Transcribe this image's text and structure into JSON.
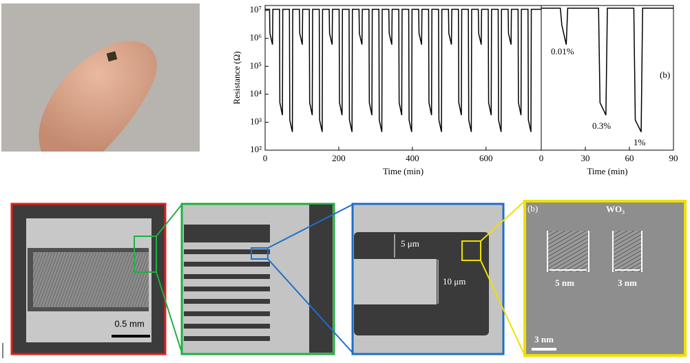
{
  "chart_data": [
    {
      "type": "line",
      "xlabel": "Time (min)",
      "ylabel": "Resistance (Ω)",
      "log_y": true,
      "xlim": [
        0,
        750
      ],
      "xticks": [
        0,
        200,
        400,
        600
      ],
      "ylim": [
        100,
        15000000
      ],
      "yticks": [
        {
          "value": 100,
          "label": "10²"
        },
        {
          "value": 1000,
          "label": "10³"
        },
        {
          "value": 10000,
          "label": "10⁴"
        },
        {
          "value": 100000,
          "label": "10⁵"
        },
        {
          "value": 1000000,
          "label": "10⁶"
        },
        {
          "value": 10000000,
          "label": "10⁷"
        }
      ],
      "series": [
        {
          "color": "#000000",
          "x": [
            0,
            12,
            13,
            20,
            21,
            39,
            40,
            47,
            48,
            66,
            67,
            74,
            75,
            93,
            94,
            101,
            102,
            120,
            121,
            128,
            129,
            147,
            148,
            155,
            156,
            174,
            175,
            182,
            183,
            201,
            202,
            209,
            210,
            228,
            229,
            236,
            237,
            255,
            256,
            263,
            264,
            282,
            283,
            290,
            291,
            309,
            310,
            317,
            318,
            336,
            337,
            344,
            345,
            363,
            364,
            371,
            372,
            390,
            391,
            398,
            399,
            417,
            418,
            425,
            426,
            444,
            445,
            452,
            453,
            471,
            472,
            479,
            480,
            498,
            499,
            506,
            507,
            525,
            526,
            533,
            534,
            552,
            553,
            560,
            561,
            579,
            580,
            587,
            588,
            606,
            607,
            614,
            615,
            633,
            634,
            641,
            642,
            660,
            661,
            668,
            669,
            687,
            688,
            695,
            696,
            714,
            715,
            722,
            723,
            750
          ],
          "y": [
            11000000,
            11000000,
            1500000,
            600000,
            11000000,
            11000000,
            5000,
            1800,
            11000000,
            11000000,
            1200,
            450,
            11000000,
            11000000,
            1500000,
            600000,
            11000000,
            11000000,
            5000,
            1800,
            11000000,
            11000000,
            1200,
            450,
            11000000,
            11000000,
            1500000,
            600000,
            11000000,
            11000000,
            5000,
            1800,
            11000000,
            11000000,
            1200,
            450,
            11000000,
            11000000,
            1500000,
            600000,
            11000000,
            11000000,
            5000,
            1800,
            11000000,
            11000000,
            1200,
            450,
            11000000,
            11000000,
            1500000,
            600000,
            11000000,
            11000000,
            5000,
            1800,
            11000000,
            11000000,
            1200,
            450,
            11000000,
            11000000,
            1500000,
            600000,
            11000000,
            11000000,
            5000,
            1800,
            11000000,
            11000000,
            1200,
            450,
            11000000,
            11000000,
            1500000,
            600000,
            11000000,
            11000000,
            5000,
            1800,
            11000000,
            11000000,
            1200,
            450,
            11000000,
            11000000,
            1500000,
            600000,
            11000000,
            11000000,
            5000,
            1800,
            11000000,
            11000000,
            1200,
            450,
            11000000,
            11000000,
            1500000,
            600000,
            11000000,
            11000000,
            5000,
            1800,
            11000000,
            11000000,
            1200,
            450,
            11000000,
            11000000
          ]
        }
      ]
    },
    {
      "type": "line",
      "xlabel": "Time (min)",
      "log_y": true,
      "xlim": [
        0,
        90
      ],
      "xticks": [
        0,
        30,
        60,
        90
      ],
      "ylim": [
        100,
        15000000
      ],
      "annotations": [
        "0.01%",
        "0.3%",
        "1%",
        "(b)"
      ],
      "series": [
        {
          "color": "#000000",
          "x": [
            0,
            13,
            14,
            17,
            18,
            39,
            40,
            44,
            45,
            63,
            64,
            68,
            69,
            90
          ],
          "y": [
            12000000,
            12000000,
            3000000,
            600000,
            12000000,
            12000000,
            5000,
            1800,
            12000000,
            12000000,
            1200,
            450,
            12000000,
            12000000
          ]
        }
      ]
    }
  ],
  "micrographs": {
    "scale_bar_1": "0.5 mm",
    "gap_label": "5 μm",
    "width_label": "10 μm",
    "tem_label": "(b)",
    "material": "WO₃",
    "fringe_1": "5 nm",
    "fringe_2": "3 nm",
    "scale_bar_2": "3 nm"
  }
}
